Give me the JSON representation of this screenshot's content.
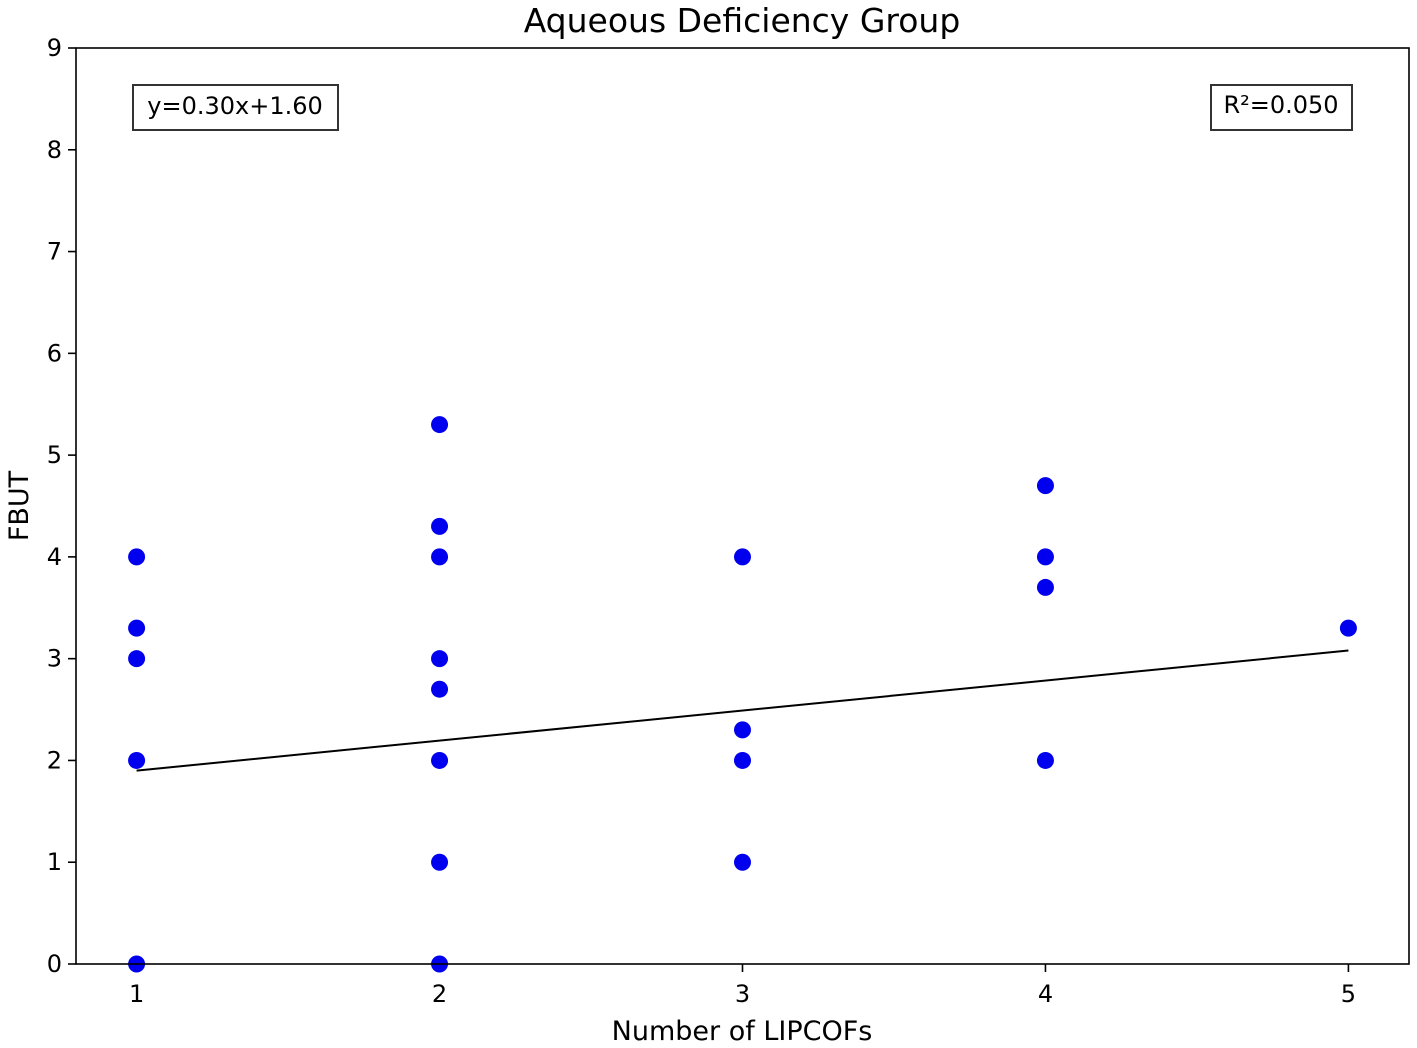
{
  "chart_data": {
    "type": "scatter",
    "title": "Aqueous Deficiency Group",
    "xlabel": "Number of LIPCOFs",
    "ylabel": "FBUT",
    "xlim": [
      0.8,
      5.2
    ],
    "ylim": [
      0,
      9
    ],
    "xticks": [
      1,
      2,
      3,
      4,
      5
    ],
    "yticks": [
      0,
      1,
      2,
      3,
      4,
      5,
      6,
      7,
      8,
      9
    ],
    "grid": false,
    "point_color": "#0000ee",
    "points": [
      {
        "x": 1,
        "y": 4.0
      },
      {
        "x": 1,
        "y": 3.3
      },
      {
        "x": 1,
        "y": 3.0
      },
      {
        "x": 1,
        "y": 2.0
      },
      {
        "x": 1,
        "y": 0.0
      },
      {
        "x": 2,
        "y": 5.3
      },
      {
        "x": 2,
        "y": 4.3
      },
      {
        "x": 2,
        "y": 4.0
      },
      {
        "x": 2,
        "y": 3.0
      },
      {
        "x": 2,
        "y": 2.7
      },
      {
        "x": 2,
        "y": 2.0
      },
      {
        "x": 2,
        "y": 1.0
      },
      {
        "x": 2,
        "y": 0.0
      },
      {
        "x": 3,
        "y": 4.0
      },
      {
        "x": 3,
        "y": 2.3
      },
      {
        "x": 3,
        "y": 2.0
      },
      {
        "x": 3,
        "y": 1.0
      },
      {
        "x": 4,
        "y": 4.7
      },
      {
        "x": 4,
        "y": 4.0
      },
      {
        "x": 4,
        "y": 3.7
      },
      {
        "x": 4,
        "y": 2.0
      },
      {
        "x": 5,
        "y": 3.3
      }
    ],
    "fit_line": {
      "x": [
        1,
        5
      ],
      "y": [
        1.9,
        3.08
      ],
      "color": "#000000"
    },
    "annotations": {
      "equation": "y=0.30x+1.60",
      "r_squared": "R²=0.050"
    }
  }
}
